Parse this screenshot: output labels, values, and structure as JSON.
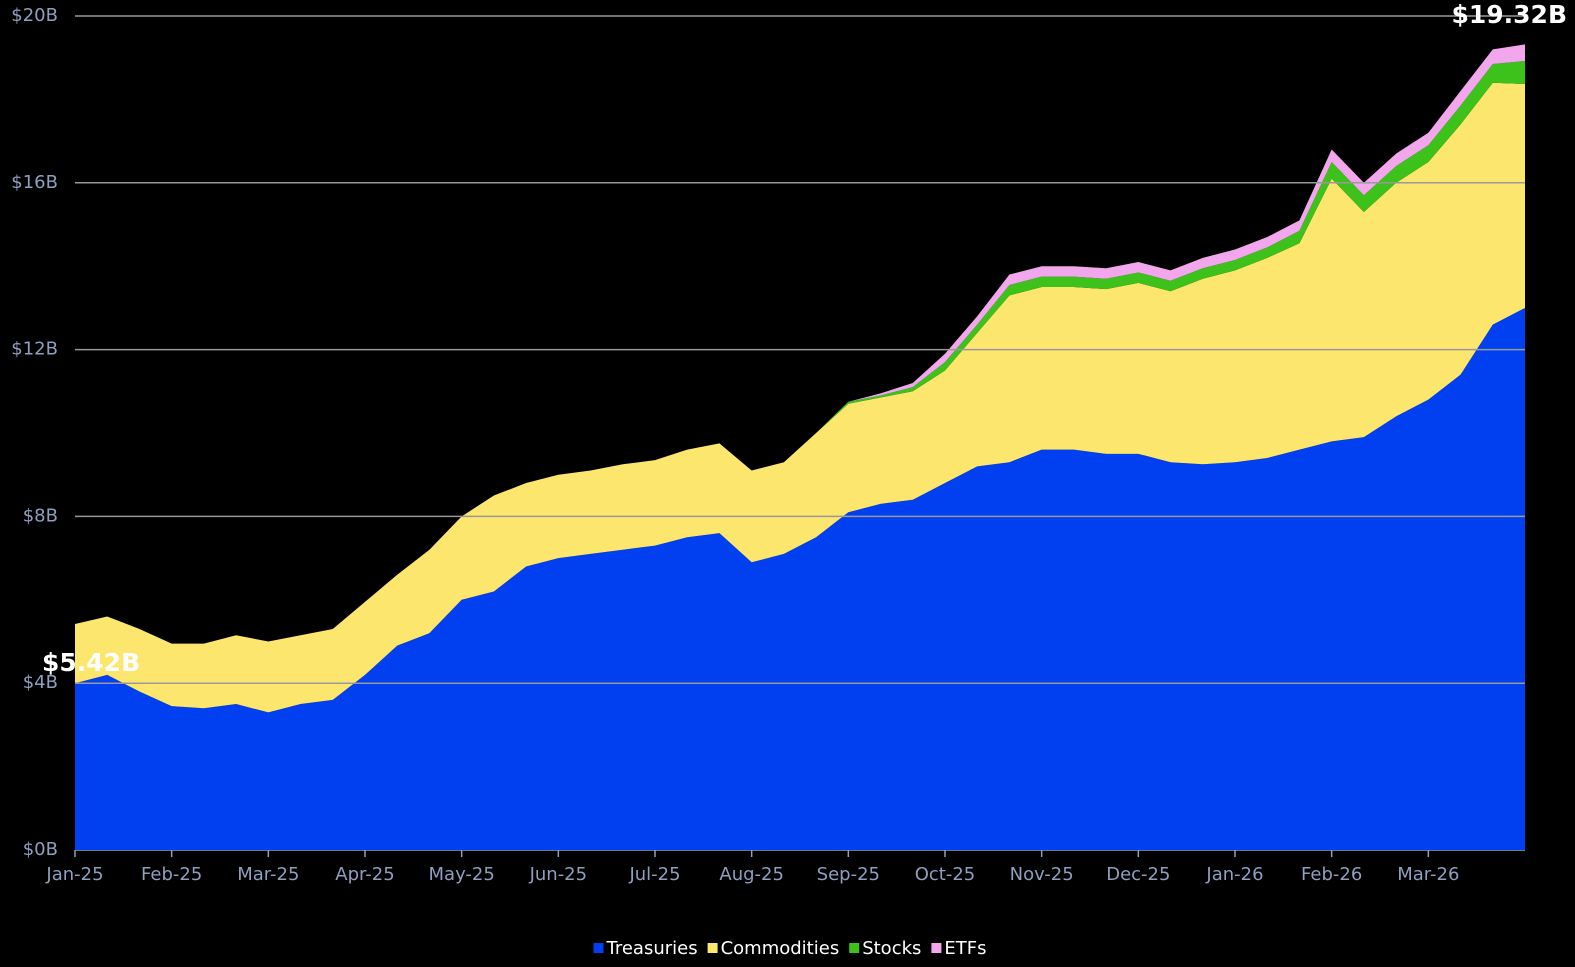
{
  "chart_data": {
    "type": "stacked_area",
    "annotations": [
      "$5.42B",
      "$19.32B"
    ],
    "categories": [
      "Jan-25",
      null,
      null,
      "Feb-25",
      null,
      null,
      "Mar-25",
      null,
      null,
      "Apr-25",
      null,
      null,
      "May-25",
      null,
      null,
      "Jun-25",
      null,
      null,
      "Jul-25",
      null,
      null,
      "Aug-25",
      null,
      null,
      "Sep-25",
      null,
      null,
      "Oct-25",
      null,
      null,
      "Nov-25",
      null,
      null,
      "Dec-25",
      null,
      null,
      "Jan-26",
      null,
      null,
      "Feb-26",
      null,
      null,
      "Mar-26",
      null,
      null,
      null
    ],
    "series": [
      {
        "name": "Treasuries",
        "color": "#0040f0",
        "values": [
          4.0,
          4.2,
          3.8,
          3.45,
          3.4,
          3.5,
          3.3,
          3.5,
          3.6,
          4.2,
          4.9,
          5.2,
          6.0,
          6.2,
          6.8,
          7.0,
          7.1,
          7.2,
          7.3,
          7.5,
          7.6,
          6.9,
          7.1,
          7.5,
          8.1,
          8.3,
          8.4,
          8.8,
          9.2,
          9.3,
          9.6,
          9.6,
          9.5,
          9.5,
          9.3,
          9.25,
          9.3,
          9.4,
          9.6,
          9.8,
          9.9,
          10.4,
          10.8,
          11.4,
          12.6,
          13.0
        ]
      },
      {
        "name": "Commodities",
        "color": "#fde66e",
        "values": [
          1.42,
          1.4,
          1.5,
          1.5,
          1.55,
          1.65,
          1.7,
          1.65,
          1.7,
          1.75,
          1.7,
          2.0,
          2.0,
          2.3,
          2.0,
          2.0,
          2.0,
          2.05,
          2.05,
          2.1,
          2.15,
          2.2,
          2.2,
          2.5,
          2.6,
          2.55,
          2.6,
          2.7,
          3.2,
          4.0,
          3.9,
          3.9,
          3.95,
          4.1,
          4.1,
          4.45,
          4.6,
          4.8,
          4.95,
          6.3,
          5.4,
          5.6,
          5.7,
          6.0,
          5.8,
          5.37
        ]
      },
      {
        "name": "Stocks",
        "color": "#3cc21a",
        "values": [
          0,
          0,
          0,
          0,
          0,
          0,
          0,
          0,
          0,
          0,
          0,
          0,
          0,
          0,
          0,
          0,
          0,
          0,
          0,
          0,
          0,
          0,
          0,
          0,
          0.05,
          0.05,
          0.1,
          0.2,
          0.2,
          0.25,
          0.25,
          0.25,
          0.25,
          0.25,
          0.25,
          0.25,
          0.25,
          0.25,
          0.3,
          0.4,
          0.4,
          0.4,
          0.4,
          0.45,
          0.45,
          0.55
        ]
      },
      {
        "name": "ETFs",
        "color": "#f2a6ec",
        "values": [
          0,
          0,
          0,
          0,
          0,
          0,
          0,
          0,
          0,
          0,
          0,
          0,
          0,
          0,
          0,
          0,
          0,
          0,
          0,
          0,
          0,
          0,
          0,
          0,
          0,
          0.05,
          0.1,
          0.2,
          0.2,
          0.25,
          0.25,
          0.25,
          0.25,
          0.25,
          0.25,
          0.25,
          0.25,
          0.25,
          0.25,
          0.3,
          0.3,
          0.3,
          0.3,
          0.35,
          0.35,
          0.4
        ]
      }
    ],
    "ylim": [
      0,
      20
    ],
    "yticks": [
      {
        "value": 0,
        "label": "$0B"
      },
      {
        "value": 4,
        "label": "$4B"
      },
      {
        "value": 8,
        "label": "$8B"
      },
      {
        "value": 12,
        "label": "$12B"
      },
      {
        "value": 16,
        "label": "$16B"
      },
      {
        "value": 20,
        "label": "$20B"
      }
    ],
    "grid": true,
    "legend": "bottom"
  }
}
